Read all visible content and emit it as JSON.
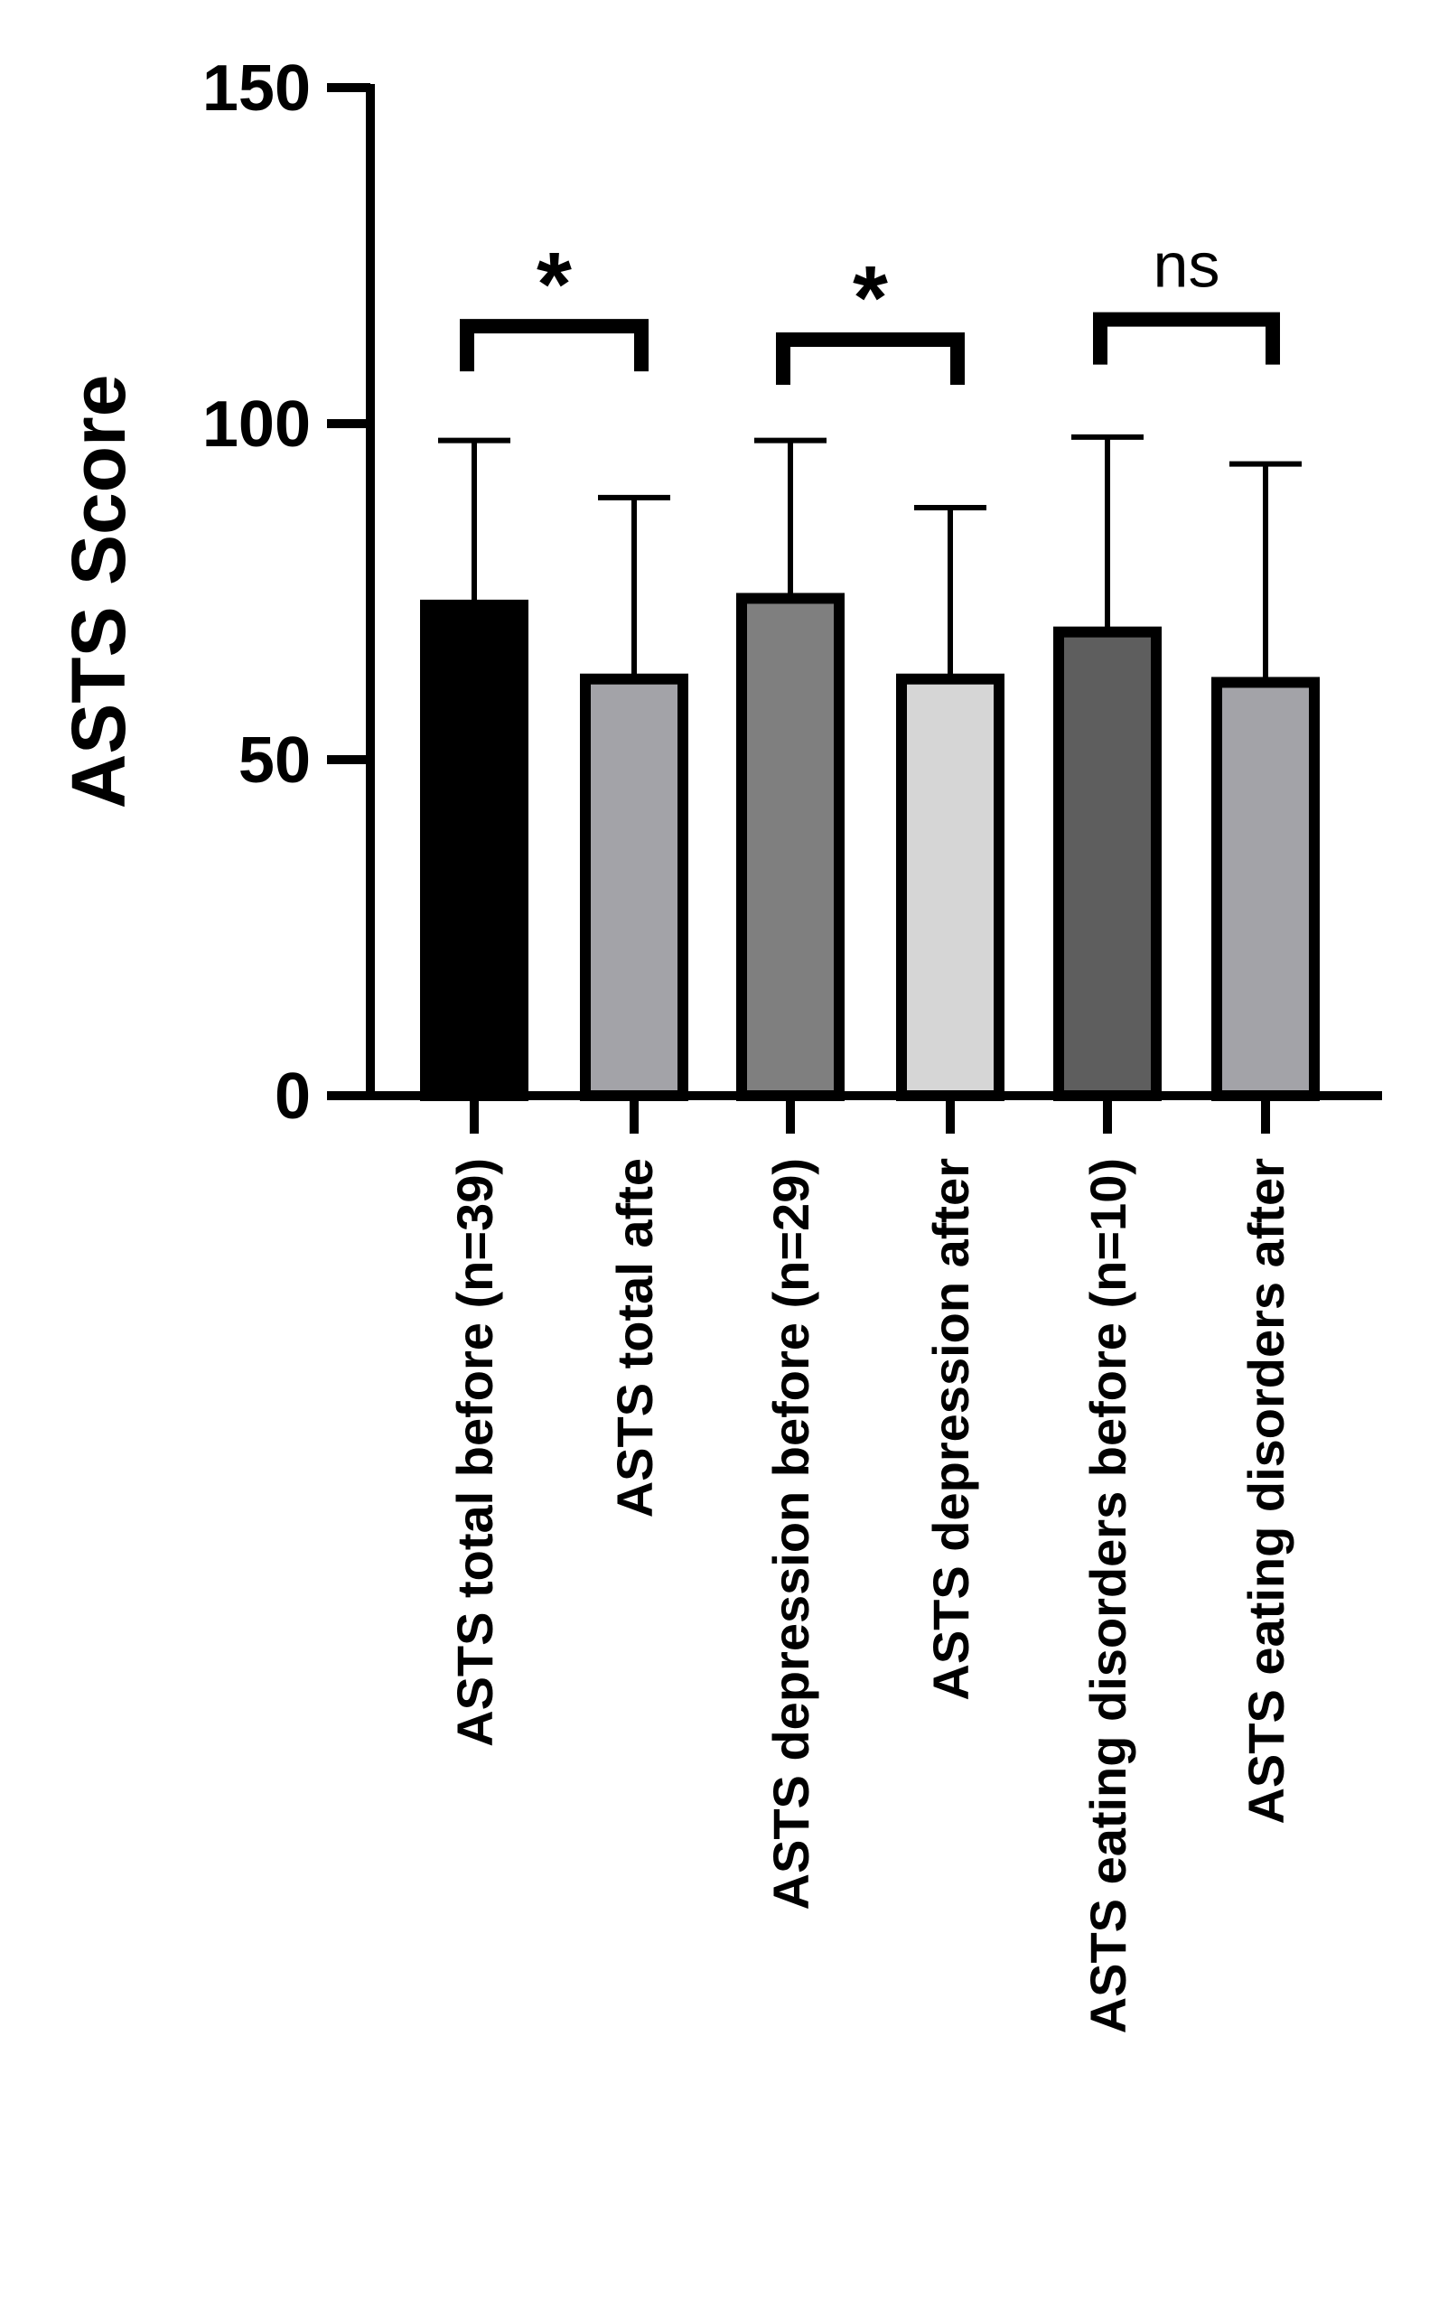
{
  "chart_data": {
    "type": "bar",
    "title": "",
    "xlabel": "",
    "ylabel": "ASTS Score",
    "ylim": [
      0,
      150
    ],
    "yticks": [
      0,
      50,
      100,
      150
    ],
    "grid": false,
    "categories": [
      "ASTS total before (n=39)",
      "ASTS total afte",
      "ASTS depression before (n=29)",
      "ASTS depression after",
      "ASTS eating disorders before (n=10)",
      "ASTS eating disorders after"
    ],
    "values": [
      73,
      62,
      74,
      62,
      69,
      61.5
    ],
    "error_upper": [
      97.5,
      89,
      97.5,
      87.5,
      98,
      94
    ],
    "colors": [
      "#000000",
      "#a3a3a8",
      "#7f7f7f",
      "#d6d6d6",
      "#5e5e5e",
      "#a3a3a8"
    ],
    "significance": [
      {
        "from": 0,
        "to": 1,
        "label": "*",
        "bracket_y": 114.5
      },
      {
        "from": 2,
        "to": 3,
        "label": "*",
        "bracket_y": 112.5
      },
      {
        "from": 4,
        "to": 5,
        "label": "ns",
        "bracket_y": 115.5
      }
    ]
  }
}
